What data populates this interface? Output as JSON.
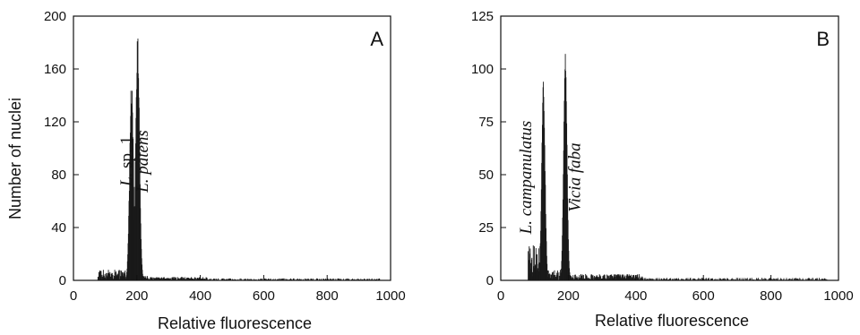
{
  "figure": {
    "ylabel": "Number of nuclei"
  },
  "chart_data": [
    {
      "type": "bar",
      "panel_label": "A",
      "xlabel": "Relative fluorescence",
      "ylabel": "Number of nuclei",
      "xlim": [
        0,
        1000
      ],
      "ylim": [
        0,
        200
      ],
      "x_ticks": [
        "0",
        "200",
        "400",
        "600",
        "800",
        "1000"
      ],
      "y_ticks": [
        "0",
        "40",
        "80",
        "120",
        "160",
        "200"
      ],
      "annotations": [
        {
          "parts": [
            {
              "text": "L.",
              "italic": true
            },
            {
              "text": " sp. 1",
              "italic": false
            }
          ],
          "x": 183
        },
        {
          "parts": [
            {
              "text": "L. patens",
              "italic": true
            }
          ],
          "x": 235
        }
      ],
      "background": {
        "x_range": [
          75,
          965
        ],
        "base_level": 1.5
      },
      "peaks": [
        {
          "x": 182,
          "height": 152,
          "width": 6
        },
        {
          "x": 201,
          "height": 186,
          "width": 6
        }
      ],
      "noise_clusters": [
        {
          "x_range": [
            76,
            178
          ],
          "level": 8
        },
        {
          "x_range": [
            205,
            240
          ],
          "level": 4
        },
        {
          "x_range": [
            240,
            420
          ],
          "level": 2.5
        }
      ]
    },
    {
      "type": "bar",
      "panel_label": "B",
      "xlabel": "Relative fluorescence",
      "ylabel": "",
      "xlim": [
        0,
        1000
      ],
      "ylim": [
        0,
        125
      ],
      "x_ticks": [
        "0",
        "200",
        "400",
        "600",
        "800",
        "1000"
      ],
      "y_ticks": [
        "0",
        "25",
        "50",
        "75",
        "100",
        "125"
      ],
      "annotations": [
        {
          "parts": [
            {
              "text": "L. campanulatus",
              "italic": true
            }
          ],
          "x": 90
        },
        {
          "parts": [
            {
              "text": "Vicia faba",
              "italic": true
            }
          ],
          "x": 235
        }
      ],
      "background": {
        "x_range": [
          80,
          965
        ],
        "base_level": 1.2
      },
      "peaks": [
        {
          "x": 125,
          "height": 94,
          "width": 5
        },
        {
          "x": 190,
          "height": 111,
          "width": 5
        }
      ],
      "noise_clusters": [
        {
          "x_range": [
            80,
            118
          ],
          "level": 18
        },
        {
          "x_range": [
            133,
            180
          ],
          "level": 5
        },
        {
          "x_range": [
            198,
            420
          ],
          "level": 3
        }
      ]
    }
  ]
}
